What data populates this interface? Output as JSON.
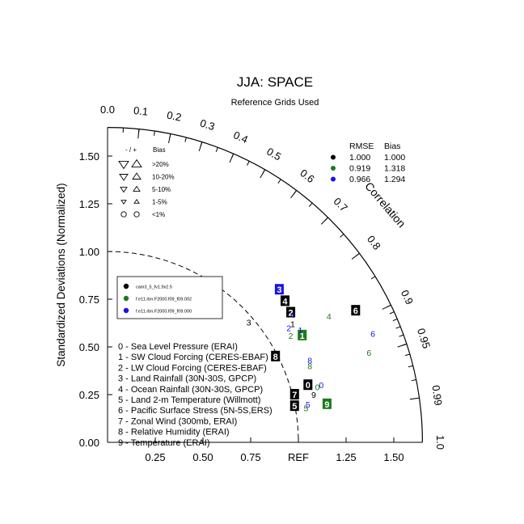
{
  "chart_data": {
    "type": "scatter",
    "title": "JJA: SPACE",
    "subtitle": "Reference Grids Used",
    "ylabel": "Standardized Deviations (Normalized)",
    "correlation_label": "Correlation",
    "ref_label": "REF",
    "xlim": [
      0,
      1.65
    ],
    "ylim": [
      0,
      1.65
    ],
    "x_ticks": [
      "0.25",
      "0.50",
      "0.75",
      "1.25",
      "1.50"
    ],
    "y_ticks": [
      "0.00",
      "0.25",
      "0.50",
      "0.75",
      "1.00",
      "1.25",
      "1.50"
    ],
    "corr_ticks_outer": [
      "0.0",
      "0.1",
      "0.2",
      "0.3",
      "0.4",
      "0.5",
      "0.6",
      "0.7",
      "0.8",
      "0.9",
      "0.95",
      "0.99",
      "1.0"
    ],
    "ref_arc_radius": 1.0,
    "bias_legend": {
      "header": "- / +",
      "header2": "Bias",
      "rows": [
        ">20%",
        "10-20%",
        "5-10%",
        "1-5%",
        "<1%"
      ]
    },
    "stats_table": {
      "headers": [
        "RMSE",
        "Bias"
      ],
      "rows": [
        {
          "color": "#000000",
          "rmse": "1.000",
          "bias": "1.000"
        },
        {
          "color": "#1a7a1a",
          "rmse": "0.919",
          "bias": "1.318"
        },
        {
          "color": "#1414e6",
          "rmse": "0.966",
          "bias": "1.294"
        }
      ]
    },
    "case_legend": [
      {
        "color": "#000000",
        "name": "cam3_5_fv1.9x2.5"
      },
      {
        "color": "#1a7a1a",
        "name": "f.e11.rbn.F2000.f09_f09.002"
      },
      {
        "color": "#1414e6",
        "name": "f.e11.rbn.F2000.f09_f09.000"
      }
    ],
    "variables": [
      "0 - Sea Level Pressure (ERAI)",
      "1 - SW Cloud Forcing (CERES-EBAF)",
      "2 - LW Cloud Forcing (CERES-EBAF)",
      "3 - Land Rainfall (30N-30S, GPCP)",
      "4 - Ocean Rainfall (30N-30S, GPCP)",
      "5 - Land 2-m Temperature (Willmott)",
      "6 - Pacific Surface Stress (5N-5S,ERS)",
      "7 - Zonal Wind (300mb, ERAI)",
      "8 - Relative Humidity (ERAI)",
      "9 - Temperature (ERAI)"
    ],
    "series": [
      {
        "color": "#000000",
        "points": [
          {
            "label": "0",
            "x": 1.05,
            "y": 0.3,
            "boxed": true
          },
          {
            "label": "1",
            "x": 0.97,
            "y": 0.62,
            "boxed": false
          },
          {
            "label": "2",
            "x": 0.96,
            "y": 0.68,
            "boxed": true
          },
          {
            "label": "3",
            "x": 0.74,
            "y": 0.63,
            "boxed": false
          },
          {
            "label": "4",
            "x": 0.93,
            "y": 0.74,
            "boxed": true
          },
          {
            "label": "5",
            "x": 0.98,
            "y": 0.19,
            "boxed": true
          },
          {
            "label": "6",
            "x": 1.3,
            "y": 0.69,
            "boxed": true
          },
          {
            "label": "7",
            "x": 0.98,
            "y": 0.25,
            "boxed": true
          },
          {
            "label": "8",
            "x": 0.88,
            "y": 0.45,
            "boxed": true
          },
          {
            "label": "9",
            "x": 1.08,
            "y": 0.25,
            "boxed": false
          }
        ]
      },
      {
        "color": "#1a7a1a",
        "points": [
          {
            "label": "0",
            "x": 1.1,
            "y": 0.29,
            "boxed": false
          },
          {
            "label": "1",
            "x": 1.02,
            "y": 0.56,
            "boxed": true
          },
          {
            "label": "2",
            "x": 0.96,
            "y": 0.56,
            "boxed": false
          },
          {
            "label": "4",
            "x": 1.16,
            "y": 0.66,
            "boxed": false
          },
          {
            "label": "5",
            "x": 1.04,
            "y": 0.18,
            "boxed": false
          },
          {
            "label": "6",
            "x": 1.37,
            "y": 0.47,
            "boxed": false
          },
          {
            "label": "8",
            "x": 1.06,
            "y": 0.4,
            "boxed": false
          },
          {
            "label": "9",
            "x": 1.15,
            "y": 0.2,
            "boxed": true
          }
        ]
      },
      {
        "color": "#1414e6",
        "points": [
          {
            "label": "0",
            "x": 1.12,
            "y": 0.3,
            "boxed": false
          },
          {
            "label": "1",
            "x": 1.01,
            "y": 0.59,
            "boxed": false
          },
          {
            "label": "2",
            "x": 0.95,
            "y": 0.6,
            "boxed": false
          },
          {
            "label": "3",
            "x": 0.9,
            "y": 0.8,
            "boxed": true
          },
          {
            "label": "4",
            "x": 0.97,
            "y": 0.67,
            "boxed": false
          },
          {
            "label": "5",
            "x": 1.05,
            "y": 0.2,
            "boxed": false
          },
          {
            "label": "6",
            "x": 1.39,
            "y": 0.57,
            "boxed": false
          },
          {
            "label": "8",
            "x": 1.06,
            "y": 0.43,
            "boxed": false
          }
        ]
      }
    ]
  }
}
